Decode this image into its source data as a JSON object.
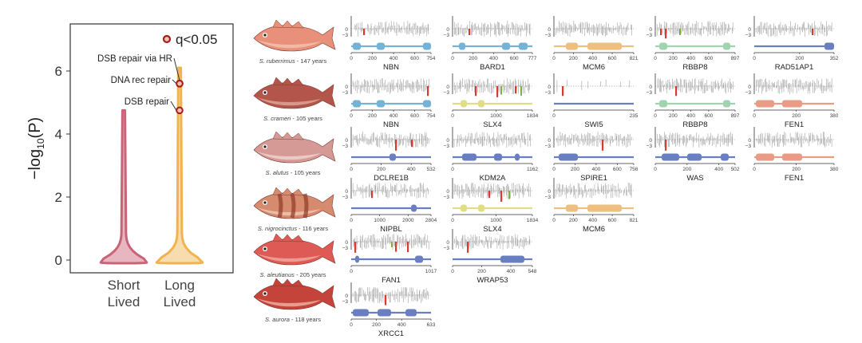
{
  "colors": {
    "short": "#c96478",
    "short_fill": "#e7b6c0",
    "long": "#f0b350",
    "long_fill": "#f7dcae",
    "sig_point": "#a51d1d",
    "red": "#d9392e",
    "green": "#7bb043",
    "gray": "#a0a0a0",
    "domain_blue": "#6a7fc1",
    "domain_light_blue": "#73b3d6",
    "domain_orange": "#eebf7f",
    "domain_green": "#9fd4ae",
    "domain_salmon": "#e99b86",
    "domain_yellow": "#e0de85"
  },
  "chart_data": {
    "type": "violin",
    "ylabel": "−log",
    "ylabel_sub": "10",
    "ylabel_tail": "(P)",
    "ylim": [
      0,
      7.2
    ],
    "yticks": [
      "0",
      "2",
      "4",
      "6"
    ],
    "legend": "q<0.05",
    "groups": [
      {
        "name_line1": "Short",
        "name_line2": "Lived",
        "max": 4.75,
        "median": 0.2
      },
      {
        "name_line1": "Long",
        "name_line2": "Lived",
        "max": 6.1,
        "median": 0.2
      }
    ],
    "significant": [
      {
        "label": "DSB repair via HR",
        "value": 5.6
      },
      {
        "label": "DNA rec repair",
        "value": 5.6
      },
      {
        "label": "DSB repair",
        "value": 4.75
      }
    ]
  },
  "species": [
    {
      "name": "S. ruberrimus",
      "age": " - 147 years",
      "body": "#e8907a",
      "belly": "#f5c3b0",
      "genes": [
        {
          "gene": "NBN",
          "len": 754,
          "ticks": [
            "0",
            "200",
            "400",
            "600",
            "754"
          ],
          "dcolor": "domain_light_blue",
          "domains": [
            [
              0.02,
              0.12
            ],
            [
              0.32,
              0.42
            ],
            [
              0.9,
              1.0
            ]
          ],
          "reds": [
            0.15
          ],
          "greens": []
        },
        {
          "gene": "BARD1",
          "len": 777,
          "ticks": [
            "0",
            "200",
            "400",
            "600",
            "777"
          ],
          "dcolor": "domain_light_blue",
          "domains": [
            [
              0.08,
              0.16
            ],
            [
              0.62,
              0.72
            ],
            [
              0.83,
              0.94
            ]
          ],
          "reds": [
            0.2
          ],
          "greens": []
        },
        {
          "gene": "MCM6",
          "len": 821,
          "ticks": [
            "0",
            "200",
            "400",
            "600",
            "821"
          ],
          "dcolor": "domain_orange",
          "domains": [
            [
              0.15,
              0.3
            ],
            [
              0.42,
              0.85
            ]
          ],
          "reds": [],
          "greens": []
        },
        {
          "gene": "RBBP8",
          "len": 897,
          "ticks": [
            "0",
            "200",
            "400",
            "600",
            "897"
          ],
          "dcolor": "domain_green",
          "domains": [
            [
              0.05,
              0.15
            ],
            [
              0.85,
              0.94
            ]
          ],
          "reds": [
            0.06,
            0.12
          ],
          "greens": [
            0.3
          ]
        },
        {
          "gene": "RAD51AP1",
          "len": 352,
          "ticks": [
            "0",
            "200",
            "352"
          ],
          "dcolor": "domain_blue",
          "domains": [
            [
              0.88,
              1.0
            ]
          ],
          "reds": [
            0.72
          ],
          "greens": []
        }
      ]
    },
    {
      "name": "S. crameri",
      "age": " - 105 years",
      "body": "#b3554a",
      "belly": "#e0a79a",
      "genes": [
        {
          "gene": "NBN",
          "len": 754,
          "ticks": [
            "0",
            "200",
            "400",
            "600",
            "754"
          ],
          "dcolor": "domain_light_blue",
          "domains": [
            [
              0.02,
              0.12
            ],
            [
              0.32,
              0.42
            ],
            [
              0.9,
              1.0
            ]
          ],
          "reds": [
            0.95
          ],
          "greens": []
        },
        {
          "gene": "SLX4",
          "len": 1834,
          "ticks": [
            "0",
            "1000",
            "1834"
          ],
          "dcolor": "domain_yellow",
          "domains": [
            [
              0.1,
              0.18
            ],
            [
              0.32,
              0.4
            ]
          ],
          "reds": [
            0.28,
            0.55,
            0.78
          ],
          "greens": [
            0.6,
            0.85
          ]
        },
        {
          "gene": "SWI5",
          "len": 235,
          "ticks": [
            "0",
            "235"
          ],
          "dcolor": "domain_blue",
          "domains": [],
          "reds": [
            0.1
          ],
          "greens": []
        },
        {
          "gene": "RBBP8",
          "len": 897,
          "ticks": [
            "0",
            "200",
            "400",
            "600",
            "897"
          ],
          "dcolor": "domain_green",
          "domains": [
            [
              0.05,
              0.15
            ],
            [
              0.85,
              0.94
            ]
          ],
          "reds": [
            0.25
          ],
          "greens": []
        },
        {
          "gene": "FEN1",
          "len": 380,
          "ticks": [
            "0",
            "200",
            "380"
          ],
          "dcolor": "domain_salmon",
          "domains": [
            [
              0.02,
              0.25
            ],
            [
              0.35,
              0.6
            ]
          ],
          "reds": [],
          "greens": []
        }
      ]
    },
    {
      "name": "S. alutus",
      "age": " - 105 years",
      "body": "#d59a96",
      "belly": "#f1d4d0",
      "genes": [
        {
          "gene": "DCLRE1B",
          "len": 532,
          "ticks": [
            "0",
            "200",
            "400",
            "532"
          ],
          "dcolor": "domain_blue",
          "domains": [
            [
              0.48,
              0.56
            ]
          ],
          "reds": [
            0.55,
            0.75
          ],
          "greens": []
        },
        {
          "gene": "KDM2A",
          "len": 1162,
          "ticks": [
            "0",
            "1162"
          ],
          "dcolor": "domain_blue",
          "domains": [
            [
              0.12,
              0.3
            ],
            [
              0.52,
              0.62
            ],
            [
              0.78,
              0.84
            ]
          ],
          "reds": [],
          "greens": []
        },
        {
          "gene": "SPIRE1",
          "len": 756,
          "ticks": [
            "0",
            "200",
            "400",
            "600",
            "756"
          ],
          "dcolor": "domain_blue",
          "domains": [
            [
              0.06,
              0.3
            ]
          ],
          "reds": [
            0.6
          ],
          "greens": []
        },
        {
          "gene": "WAS",
          "len": 502,
          "ticks": [
            "0",
            "200",
            "400",
            "502"
          ],
          "dcolor": "domain_blue",
          "domains": [
            [
              0.08,
              0.3
            ],
            [
              0.4,
              0.58
            ],
            [
              0.82,
              0.92
            ]
          ],
          "reds": [
            0.12
          ],
          "greens": []
        },
        {
          "gene": "FEN1",
          "len": 380,
          "ticks": [
            "0",
            "200",
            "380"
          ],
          "dcolor": "domain_salmon",
          "domains": [
            [
              0.02,
              0.25
            ],
            [
              0.35,
              0.6
            ]
          ],
          "reds": [],
          "greens": []
        }
      ]
    },
    {
      "name": "S. nigrocinctus",
      "age": " - 116 years",
      "body": "#d68a6e",
      "belly": "#f0c9b5",
      "genes": [
        {
          "gene": "NIPBL",
          "len": 2804,
          "ticks": [
            "0",
            "1000",
            "2000",
            "2804"
          ],
          "dcolor": "domain_blue",
          "domains": [
            [
              0.75,
              0.82
            ]
          ],
          "reds": [
            0.25
          ],
          "greens": []
        },
        {
          "gene": "SLX4",
          "len": 1834,
          "ticks": [
            "0",
            "1000",
            "1834"
          ],
          "dcolor": "domain_yellow",
          "domains": [
            [
              0.1,
              0.18
            ],
            [
              0.32,
              0.4
            ]
          ],
          "reds": [
            0.45,
            0.6
          ],
          "greens": [
            0.7
          ]
        },
        {
          "gene": "MCM6",
          "len": 821,
          "ticks": [
            "0",
            "200",
            "400",
            "600",
            "821"
          ],
          "dcolor": "domain_orange",
          "domains": [
            [
              0.15,
              0.3
            ],
            [
              0.42,
              0.85
            ]
          ],
          "reds": [],
          "greens": []
        }
      ]
    },
    {
      "name": "S. aleutianus",
      "age": " - 205 years",
      "body": "#dd5a55",
      "belly": "#f2a9a1",
      "genes": [
        {
          "gene": "FAN1",
          "len": 1017,
          "ticks": [
            "0",
            "1017"
          ],
          "dcolor": "domain_blue",
          "domains": [
            [
              0.05,
              0.1
            ],
            [
              0.8,
              0.9
            ]
          ],
          "reds": [
            0.04,
            0.55,
            0.7
          ],
          "greens": [
            0.5
          ]
        },
        {
          "gene": "WRAP53",
          "len": 548,
          "ticks": [
            "0",
            "200",
            "400",
            "548"
          ],
          "dcolor": "domain_blue",
          "domains": [
            [
              0.6,
              0.9
            ]
          ],
          "reds": [
            0.18
          ],
          "greens": []
        }
      ]
    },
    {
      "name": "S. aurora",
      "age": " - 118 years",
      "body": "#c4443b",
      "belly": "#f0b3a6",
      "genes": [
        {
          "gene": "XRCC1",
          "len": 633,
          "ticks": [
            "0",
            "200",
            "400",
            "633"
          ],
          "dcolor": "domain_blue",
          "domains": [
            [
              0.02,
              0.22
            ],
            [
              0.33,
              0.5
            ],
            [
              0.68,
              0.82
            ]
          ],
          "reds": [
            0.42
          ],
          "greens": []
        }
      ]
    }
  ]
}
